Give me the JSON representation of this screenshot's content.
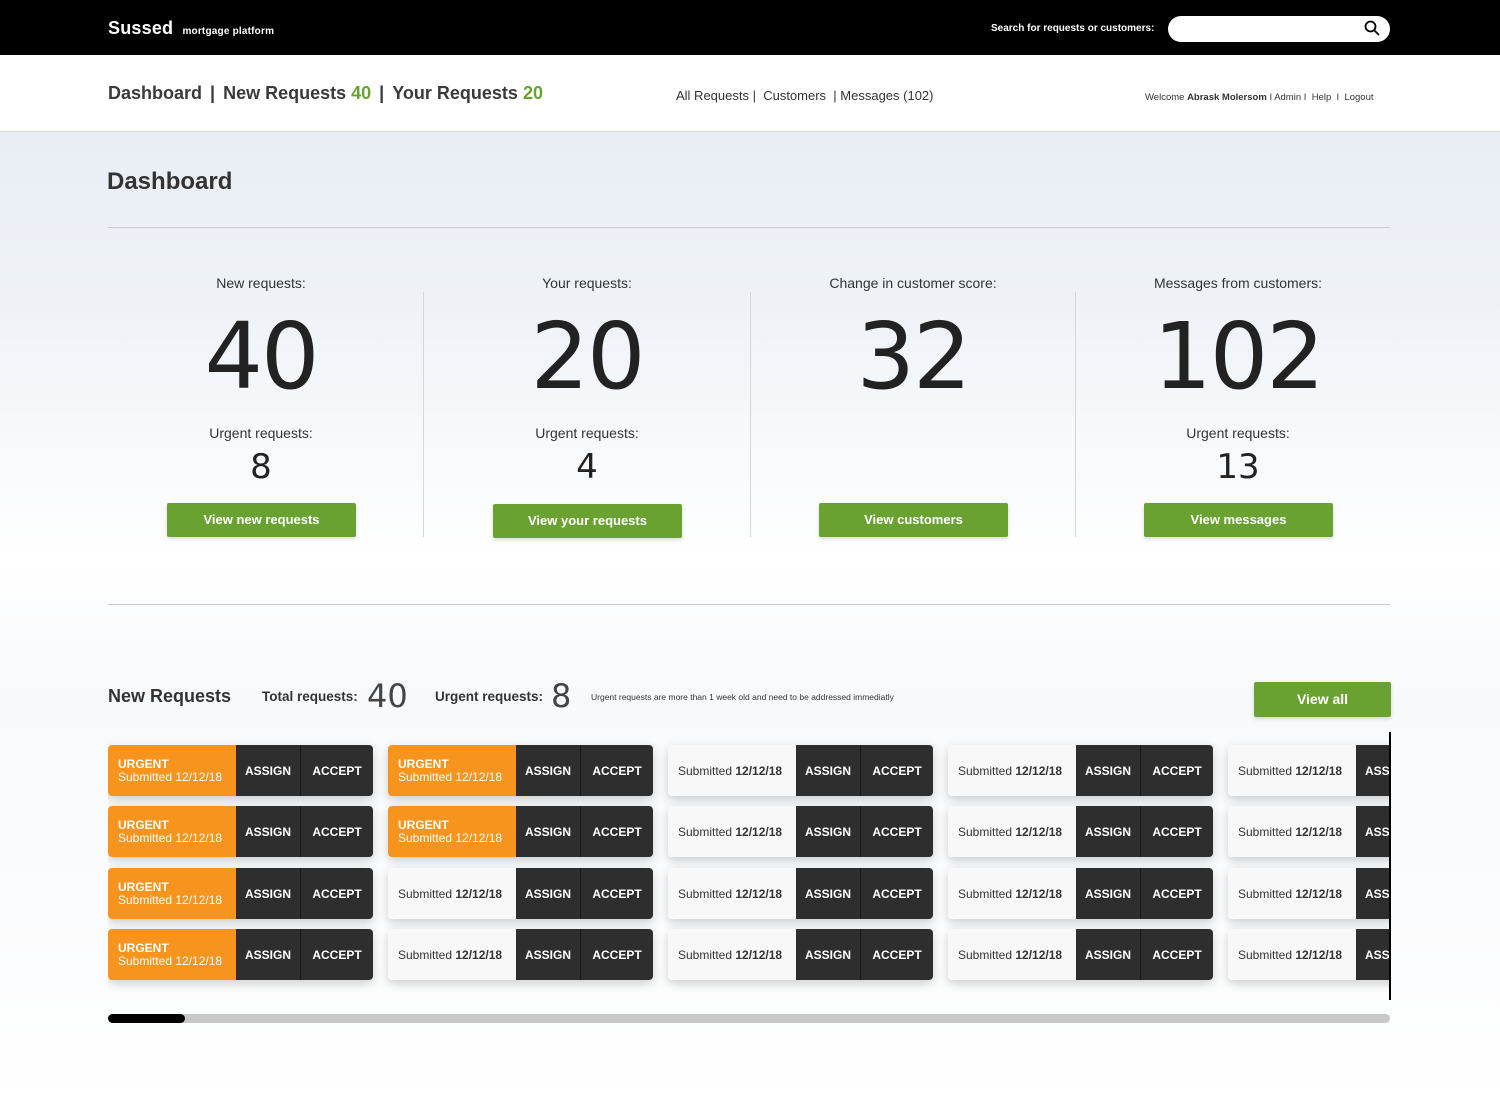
{
  "topbar": {
    "brand": "Sussed",
    "brand_sub": "mortgage platform",
    "search_label": "Search for requests or customers:",
    "search_placeholder": "",
    "search_icon": "search-icon"
  },
  "nav": {
    "dashboard": "Dashboard",
    "sep": "|",
    "new_requests_label": "New Requests",
    "new_requests_count": "40",
    "your_requests_label": "Your Requests",
    "your_requests_count": "20",
    "all_requests": "All Requests |",
    "customers": "Customers",
    "messages": "| Messages (102)",
    "welcome": "Welcome",
    "user_name": "Abrask Molersom",
    "admin": "I  Admin  I",
    "help": "Help",
    "help_sep": "I",
    "logout": "Logout"
  },
  "page_title": "Dashboard",
  "stats": [
    {
      "label": "New requests:",
      "value": "40",
      "urgent_label": "Urgent requests:",
      "urgent_value": "8",
      "button": "View new requests"
    },
    {
      "label": "Your requests:",
      "value": "20",
      "urgent_label": "Urgent requests:",
      "urgent_value": "4",
      "button": "View your requests"
    },
    {
      "label": "Change in customer score:",
      "value": "32",
      "urgent_label": "",
      "urgent_value": "",
      "button": "View customers"
    },
    {
      "label": "Messages from customers:",
      "value": "102",
      "urgent_label": "Urgent requests:",
      "urgent_value": "13",
      "button": "View messages"
    }
  ],
  "new_requests": {
    "title": "New Requests",
    "total_label": "Total requests:",
    "total_value": "40",
    "urgent_label": "Urgent requests:",
    "urgent_value": "8",
    "note": "Urgent requests are more than 1 week old and need to be addressed immediatly",
    "view_all": "View all",
    "urgent_tag": "URGENT",
    "submitted_prefix": "Submitted",
    "assign_label": "ASSIGN",
    "accept_label": "ACCEPT",
    "scroll_progress": 0.06,
    "grid": [
      [
        {
          "urgent": true,
          "date": "12/12/18"
        },
        {
          "urgent": true,
          "date": "12/12/18"
        },
        {
          "urgent": false,
          "date": "12/12/18"
        },
        {
          "urgent": false,
          "date": "12/12/18"
        },
        {
          "urgent": false,
          "date": "12/12/18"
        }
      ],
      [
        {
          "urgent": true,
          "date": "12/12/18"
        },
        {
          "urgent": true,
          "date": "12/12/18"
        },
        {
          "urgent": false,
          "date": "12/12/18"
        },
        {
          "urgent": false,
          "date": "12/12/18"
        },
        {
          "urgent": false,
          "date": "12/12/18"
        }
      ],
      [
        {
          "urgent": true,
          "date": "12/12/18"
        },
        {
          "urgent": false,
          "date": "12/12/18"
        },
        {
          "urgent": false,
          "date": "12/12/18"
        },
        {
          "urgent": false,
          "date": "12/12/18"
        },
        {
          "urgent": false,
          "date": "12/12/18"
        }
      ],
      [
        {
          "urgent": true,
          "date": "12/12/18"
        },
        {
          "urgent": false,
          "date": "12/12/18"
        },
        {
          "urgent": false,
          "date": "12/12/18"
        },
        {
          "urgent": false,
          "date": "12/12/18"
        },
        {
          "urgent": false,
          "date": "12/12/18"
        }
      ]
    ]
  },
  "colors": {
    "accent_green": "#6aa232",
    "urgent_orange": "#f7941d",
    "dark_button": "#2e2e2e"
  }
}
